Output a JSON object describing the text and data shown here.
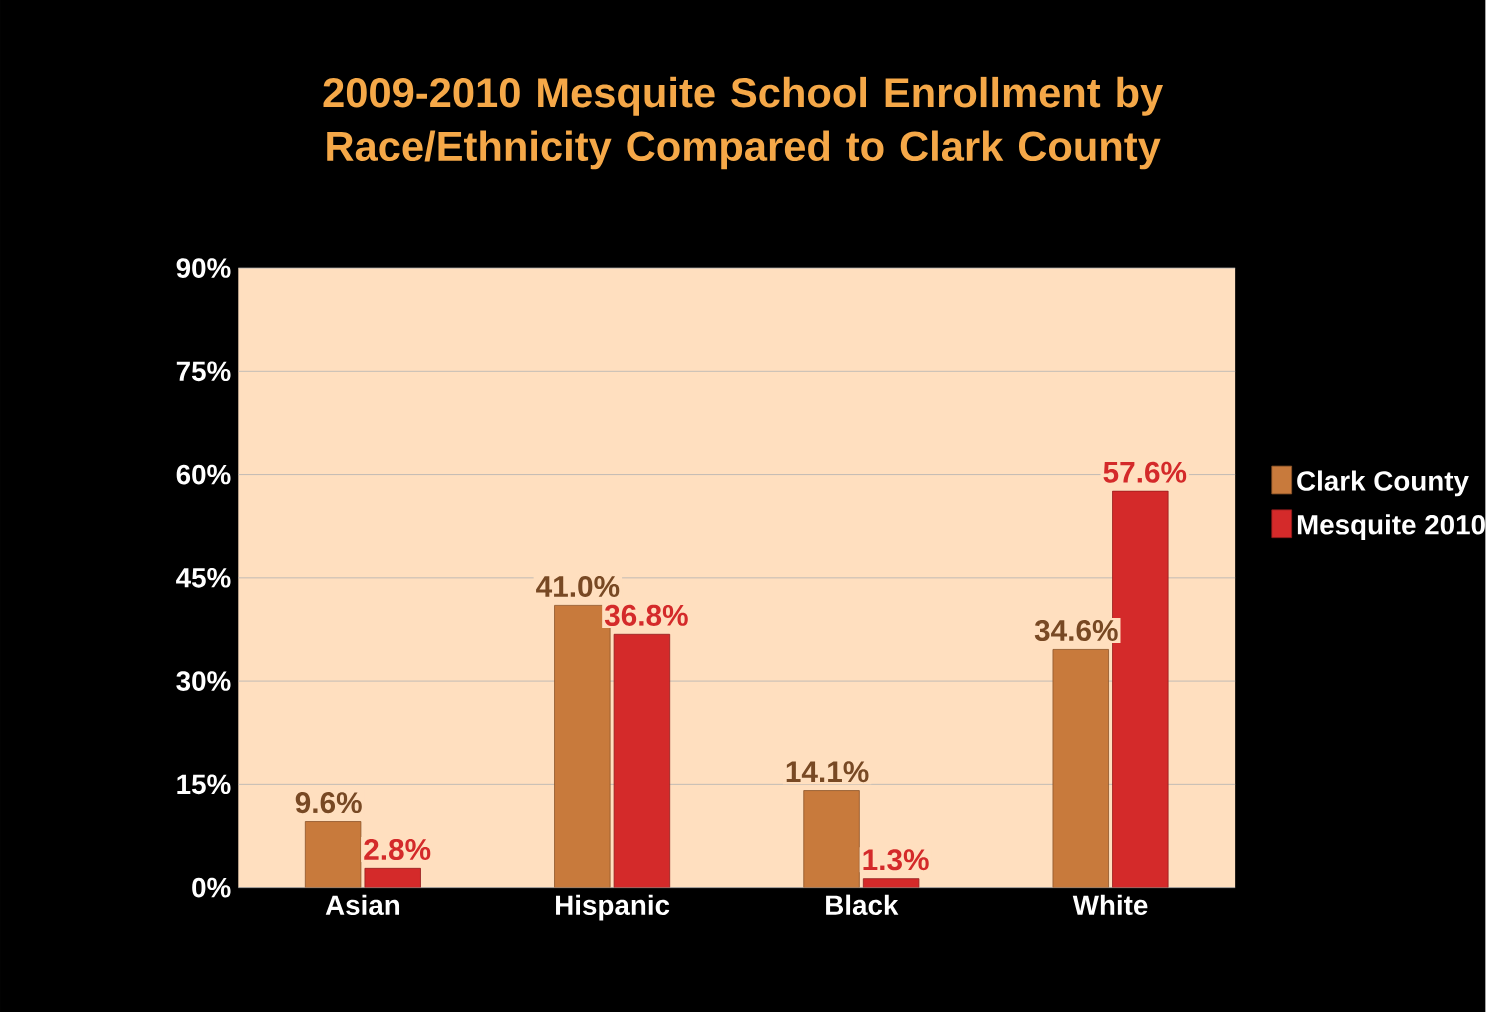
{
  "chart_data": {
    "type": "bar",
    "title": "2009-2010 Mesquite School Enrollment by Race/Ethnicity Compared to Clark County",
    "categories": [
      "Asian",
      "Hispanic",
      "Black",
      "White"
    ],
    "series": [
      {
        "name": "Clark County",
        "color": "#c87a3c",
        "values": [
          9.6,
          41.0,
          14.1,
          34.6
        ],
        "value_labels": [
          "9.6%",
          "41.0%",
          "14.1%",
          "34.6%"
        ]
      },
      {
        "name": "Mesquite 2010",
        "color": "#d42a2a",
        "values": [
          2.8,
          36.8,
          1.3,
          57.6
        ],
        "value_labels": [
          "2.8%",
          "36.8%",
          "1.3%",
          "57.6%"
        ]
      }
    ],
    "ylim": [
      0,
      90
    ],
    "yticks": [
      {
        "value": 0,
        "label": "0%"
      },
      {
        "value": 15,
        "label": "15%"
      },
      {
        "value": 30,
        "label": "30%"
      },
      {
        "value": 45,
        "label": "45%"
      },
      {
        "value": 60,
        "label": "60%"
      },
      {
        "value": 75,
        "label": "75%"
      },
      {
        "value": 90,
        "label": "90%"
      }
    ],
    "grid": "y",
    "legend": "right"
  }
}
